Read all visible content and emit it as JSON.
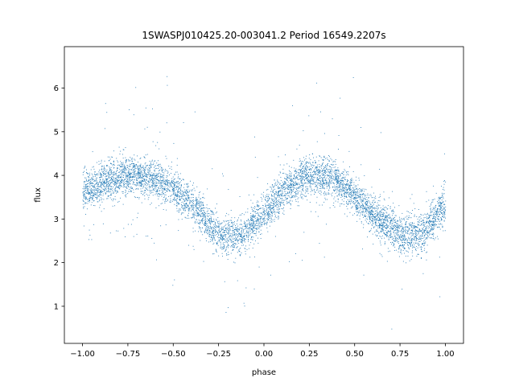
{
  "chart_data": {
    "type": "scatter",
    "title": "1SWASPJ010425.20-003041.2 Period 16549.2207s",
    "xlabel": "phase",
    "ylabel": "flux",
    "xlim": [
      -1.1,
      1.1
    ],
    "ylim": [
      0.15,
      6.95
    ],
    "xticks": [
      -1.0,
      -0.75,
      -0.5,
      -0.25,
      0.0,
      0.25,
      0.5,
      0.75,
      1.0
    ],
    "xtick_labels": [
      "−1.00",
      "−0.75",
      "−0.50",
      "−0.25",
      "0.00",
      "0.25",
      "0.50",
      "0.75",
      "1.00"
    ],
    "yticks": [
      1,
      2,
      3,
      4,
      5,
      6
    ],
    "ytick_labels": [
      "1",
      "2",
      "3",
      "4",
      "5",
      "6"
    ],
    "grid": false,
    "legend": "none",
    "marker_color": "#1f77b4",
    "series": [
      {
        "x": [
          -1.0,
          -0.875,
          -0.75,
          -0.625,
          -0.5,
          -0.375,
          -0.25,
          -0.125,
          0.0,
          0.125,
          0.25,
          0.375,
          0.5,
          0.625,
          0.75,
          0.875,
          1.0
        ],
        "y": [
          3.6,
          3.85,
          4.0,
          3.95,
          3.7,
          3.25,
          2.65,
          2.6,
          3.15,
          3.75,
          4.0,
          3.95,
          3.55,
          3.0,
          2.65,
          2.65,
          3.4
        ]
      }
    ]
  }
}
